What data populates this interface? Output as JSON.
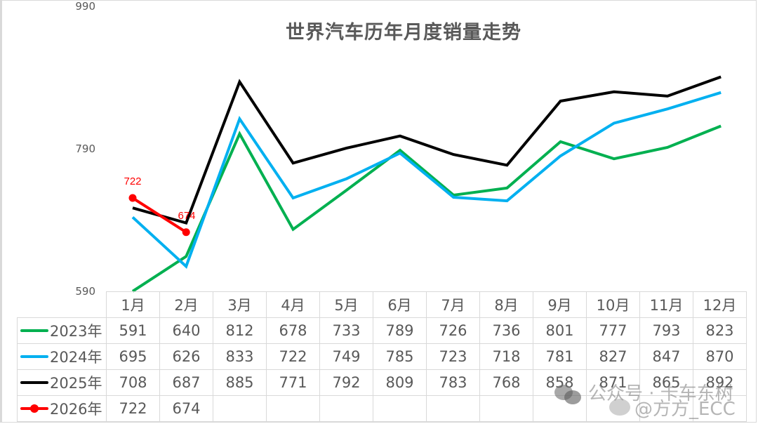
{
  "chart_data": {
    "type": "line",
    "title": "世界汽车历年月度销量走势",
    "xlabel": "",
    "ylabel": "",
    "ylim": [
      590,
      990
    ],
    "yticks": [
      590,
      790,
      990
    ],
    "grid": false,
    "legend_position": "table-left",
    "categories": [
      "1月",
      "2月",
      "3月",
      "4月",
      "5月",
      "6月",
      "7月",
      "8月",
      "9月",
      "10月",
      "11月",
      "12月"
    ],
    "series": [
      {
        "name": "2023年",
        "color": "#00b050",
        "marker": false,
        "values": [
          591,
          640,
          812,
          678,
          733,
          789,
          726,
          736,
          801,
          777,
          793,
          823
        ]
      },
      {
        "name": "2024年",
        "color": "#00b0f0",
        "marker": false,
        "values": [
          695,
          626,
          833,
          722,
          749,
          785,
          723,
          718,
          781,
          827,
          847,
          870
        ]
      },
      {
        "name": "2025年",
        "color": "#000000",
        "marker": false,
        "values": [
          708,
          687,
          885,
          771,
          792,
          809,
          783,
          768,
          858,
          871,
          865,
          892
        ]
      },
      {
        "name": "2026年",
        "color": "#ff0000",
        "marker": true,
        "data_labels": true,
        "values": [
          722,
          674,
          null,
          null,
          null,
          null,
          null,
          null,
          null,
          null,
          null,
          null
        ]
      }
    ],
    "data_table": true
  },
  "ui": {
    "title": "世界汽车历年月度销量走势",
    "yticks": [
      "990",
      "790",
      "590"
    ],
    "data_labels": [
      "722",
      "674"
    ]
  },
  "watermark": {
    "line1": "公众号 · 卡车东树",
    "line2": "@方方_ECC"
  }
}
